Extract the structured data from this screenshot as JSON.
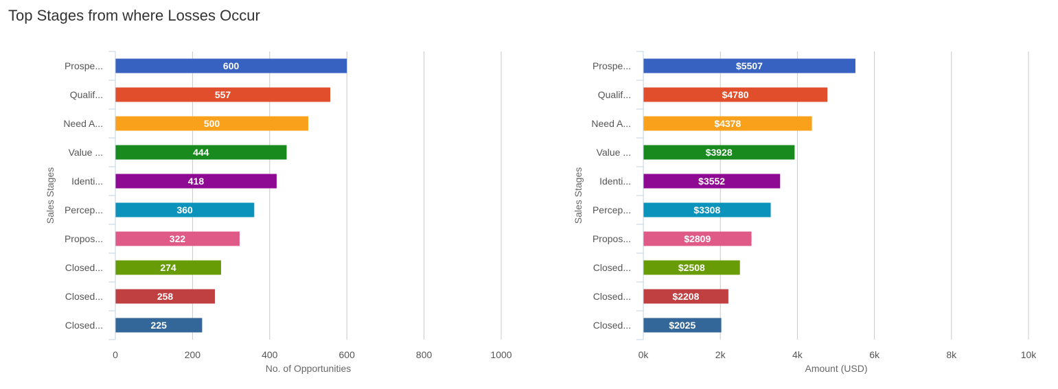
{
  "title": "Top Stages from where Losses Occur",
  "chart_data": [
    {
      "type": "bar",
      "orientation": "horizontal",
      "categories": [
        "Prospe...",
        "Qualif...",
        "Need A...",
        "Value ...",
        "Identi...",
        "Percep...",
        "Propos...",
        "Closed...",
        "Closed...",
        "Closed..."
      ],
      "values": [
        600,
        557,
        500,
        444,
        418,
        360,
        322,
        274,
        258,
        225
      ],
      "value_labels": [
        "600",
        "557",
        "500",
        "444",
        "418",
        "360",
        "322",
        "274",
        "258",
        "225"
      ],
      "colors": [
        "#3762c2",
        "#e04e2b",
        "#f9a11b",
        "#188a1e",
        "#8f0a92",
        "#0b93bb",
        "#e05a88",
        "#679c06",
        "#c03f40",
        "#336699"
      ],
      "xlabel": "No. of Opportunities",
      "ylabel": "Sales Stages",
      "xlim": [
        0,
        1000
      ],
      "xticks": [
        0,
        200,
        400,
        600,
        800,
        1000
      ],
      "xtick_labels": [
        "0",
        "200",
        "400",
        "600",
        "800",
        "1000"
      ],
      "grid": true
    },
    {
      "type": "bar",
      "orientation": "horizontal",
      "categories": [
        "Prospe...",
        "Qualif...",
        "Need A...",
        "Value ...",
        "Identi...",
        "Percep...",
        "Propos...",
        "Closed...",
        "Closed...",
        "Closed..."
      ],
      "values": [
        5507,
        4780,
        4378,
        3928,
        3552,
        3308,
        2809,
        2508,
        2208,
        2025
      ],
      "value_labels": [
        "$5507",
        "$4780",
        "$4378",
        "$3928",
        "$3552",
        "$3308",
        "$2809",
        "$2508",
        "$2208",
        "$2025"
      ],
      "colors": [
        "#3762c2",
        "#e04e2b",
        "#f9a11b",
        "#188a1e",
        "#8f0a92",
        "#0b93bb",
        "#e05a88",
        "#679c06",
        "#c03f40",
        "#336699"
      ],
      "xlabel": "Amount (USD)",
      "ylabel": "Sales Stages",
      "xlim": [
        0,
        10000
      ],
      "xticks": [
        0,
        2000,
        4000,
        6000,
        8000,
        10000
      ],
      "xtick_labels": [
        "0k",
        "2k",
        "4k",
        "6k",
        "8k",
        "10k"
      ],
      "grid": true
    }
  ]
}
